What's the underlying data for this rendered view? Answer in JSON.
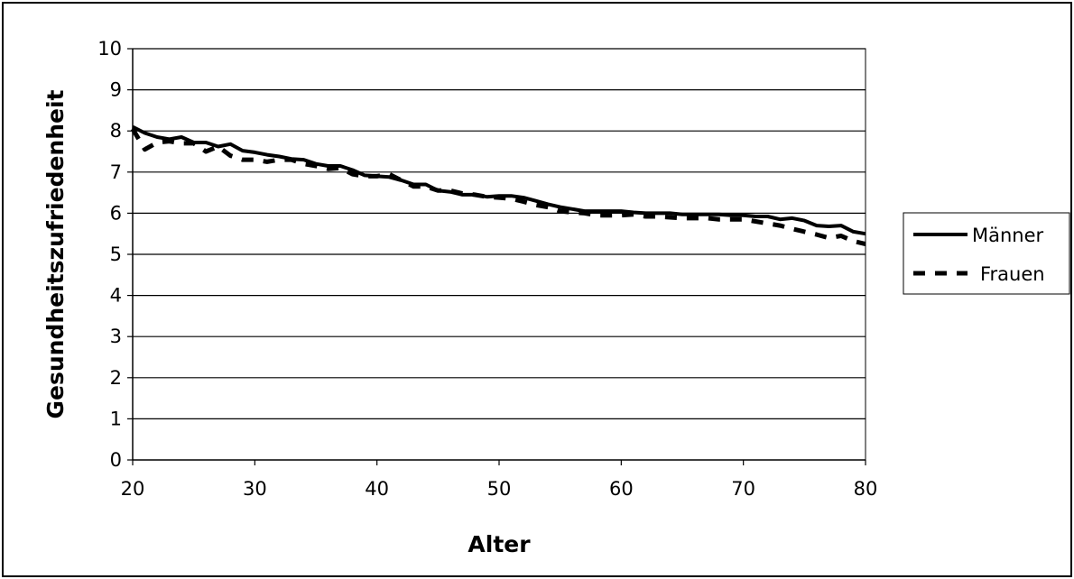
{
  "chart_data": {
    "type": "line",
    "title": "",
    "xlabel": "Alter",
    "ylabel": "Gesundheitszufriedenheit",
    "xlim": [
      20,
      80
    ],
    "ylim": [
      0,
      10
    ],
    "xticks": [
      20,
      30,
      40,
      50,
      60,
      70,
      80
    ],
    "yticks": [
      0,
      1,
      2,
      3,
      4,
      5,
      6,
      7,
      8,
      9,
      10
    ],
    "grid": "horizontal",
    "legend_position": "right",
    "series": [
      {
        "name": "Männer",
        "style": "solid",
        "color": "#000000",
        "x": [
          20,
          21,
          22,
          23,
          24,
          25,
          26,
          27,
          28,
          29,
          30,
          31,
          32,
          33,
          34,
          35,
          36,
          37,
          38,
          39,
          40,
          41,
          42,
          43,
          44,
          45,
          46,
          47,
          48,
          49,
          50,
          51,
          52,
          53,
          54,
          55,
          56,
          57,
          58,
          59,
          60,
          61,
          62,
          63,
          64,
          65,
          66,
          67,
          68,
          69,
          70,
          71,
          72,
          73,
          74,
          75,
          76,
          77,
          78,
          79,
          80
        ],
        "y": [
          8.1,
          7.95,
          7.85,
          7.8,
          7.85,
          7.72,
          7.72,
          7.62,
          7.68,
          7.52,
          7.48,
          7.42,
          7.38,
          7.32,
          7.3,
          7.2,
          7.15,
          7.15,
          7.05,
          6.92,
          6.9,
          6.88,
          6.8,
          6.7,
          6.7,
          6.55,
          6.52,
          6.45,
          6.45,
          6.4,
          6.42,
          6.42,
          6.38,
          6.3,
          6.22,
          6.15,
          6.1,
          6.05,
          6.05,
          6.05,
          6.05,
          6.02,
          6.0,
          6.0,
          6.0,
          5.97,
          5.97,
          5.97,
          5.97,
          5.95,
          5.95,
          5.92,
          5.92,
          5.85,
          5.88,
          5.82,
          5.7,
          5.68,
          5.7,
          5.55,
          5.5
        ]
      },
      {
        "name": "Frauen",
        "style": "dashed",
        "color": "#000000",
        "x": [
          20,
          21,
          22,
          23,
          24,
          25,
          26,
          27,
          28,
          29,
          30,
          31,
          32,
          33,
          34,
          35,
          36,
          37,
          38,
          39,
          40,
          41,
          42,
          43,
          44,
          45,
          46,
          47,
          48,
          49,
          50,
          51,
          52,
          53,
          54,
          55,
          56,
          57,
          58,
          59,
          60,
          61,
          62,
          63,
          64,
          65,
          66,
          67,
          68,
          69,
          70,
          71,
          72,
          73,
          74,
          75,
          76,
          77,
          78,
          79,
          80
        ],
        "y": [
          8.05,
          7.55,
          7.72,
          7.75,
          7.7,
          7.7,
          7.5,
          7.62,
          7.4,
          7.3,
          7.3,
          7.25,
          7.3,
          7.3,
          7.2,
          7.15,
          7.08,
          7.1,
          6.95,
          6.9,
          6.9,
          6.95,
          6.8,
          6.65,
          6.65,
          6.55,
          6.55,
          6.48,
          6.45,
          6.4,
          6.38,
          6.35,
          6.28,
          6.2,
          6.15,
          6.05,
          6.02,
          6.0,
          5.95,
          5.95,
          5.95,
          5.97,
          5.92,
          5.92,
          5.9,
          5.88,
          5.88,
          5.88,
          5.85,
          5.85,
          5.85,
          5.8,
          5.75,
          5.7,
          5.62,
          5.55,
          5.48,
          5.4,
          5.45,
          5.32,
          5.25
        ]
      }
    ]
  }
}
